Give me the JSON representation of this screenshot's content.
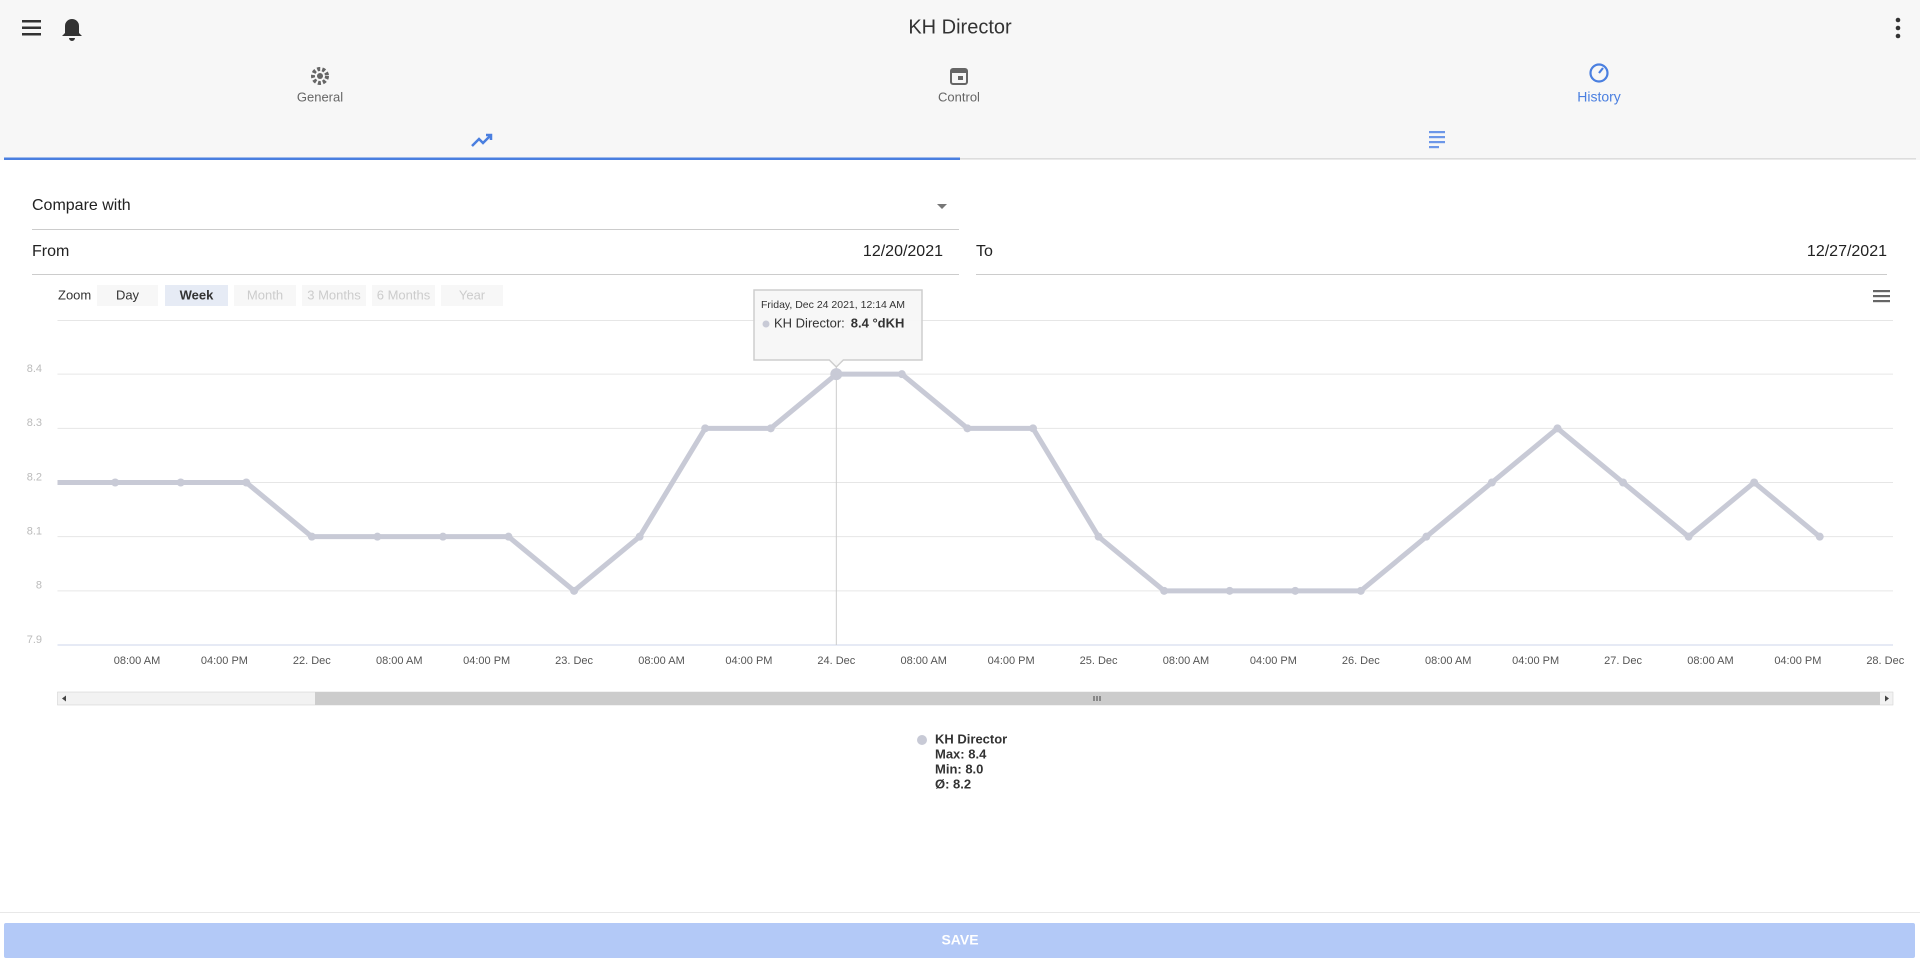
{
  "header": {
    "title": "KH Director"
  },
  "tabs": [
    "General",
    "Control",
    "History"
  ],
  "form": {
    "compare": "Compare with",
    "from_label": "From",
    "from_value": "12/20/2021",
    "to_label": "To",
    "to_value": "12/27/2021"
  },
  "zoom": {
    "label": "Zoom",
    "buttons": [
      "Day",
      "Week",
      "Month",
      "3 Months",
      "6 Months",
      "Year"
    ]
  },
  "chart": {
    "type": "line",
    "color": "#c8cad6",
    "values": [
      8.2,
      8.2,
      8.2,
      8.2,
      8.1,
      8.1,
      8.1,
      8.1,
      8.0,
      8.1,
      8.3,
      8.3,
      8.4,
      8.4,
      8.3,
      8.3,
      8.1,
      8.0,
      8.0,
      8.0,
      8.0,
      8.1,
      8.2,
      8.3,
      8.2,
      8.1,
      8.2,
      8.1
    ],
    "ylim": [
      7.9,
      8.5
    ],
    "yticks": [
      7.9,
      8,
      8.1,
      8.2,
      8.3,
      8.4
    ],
    "grid": true,
    "xticks": [
      "08:00 AM",
      "04:00 PM",
      "22. Dec",
      "08:00 AM",
      "04:00 PM",
      "23. Dec",
      "08:00 AM",
      "04:00 PM",
      "24. Dec",
      "08:00 AM",
      "04:00 PM",
      "25. Dec",
      "08:00 AM",
      "04:00 PM",
      "26. Dec",
      "08:00 AM",
      "04:00 PM",
      "27. Dec",
      "08:00 AM",
      "04:00 PM",
      "28. Dec"
    ],
    "tooltip": {
      "date": "Friday, Dec 24 2021, 12:14 AM",
      "series": "KH Director:",
      "value_label": "8.4 °dKH"
    },
    "legend": {
      "name": "KH Director",
      "max": "Max: 8.4",
      "min": "Min: 8.0",
      "avg": "Ø: 8.2"
    }
  },
  "save": "SAVE"
}
